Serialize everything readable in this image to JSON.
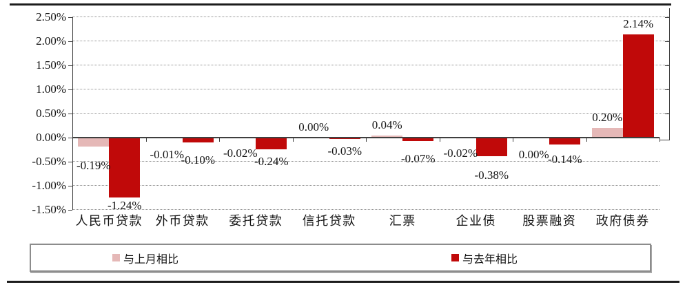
{
  "chart_data": {
    "type": "bar",
    "title": "",
    "categories": [
      "人民币贷款",
      "外币贷款",
      "委托贷款",
      "信托贷款",
      "汇票",
      "企业债",
      "股票融资",
      "政府债券"
    ],
    "series": [
      {
        "name": "与上月相比",
        "color": "#E5B8B7",
        "values": [
          -0.19,
          -0.01,
          -0.02,
          0.0,
          0.04,
          -0.02,
          0.0,
          0.2
        ],
        "labels": [
          "-0.19%",
          "-0.01%",
          "-0.02%",
          "0.00%",
          "0.04%",
          "-0.02%",
          "0.00%",
          "0.20%"
        ]
      },
      {
        "name": "与去年相比",
        "color": "#C00909",
        "values": [
          -1.24,
          -0.1,
          -0.24,
          -0.03,
          -0.07,
          -0.38,
          -0.14,
          2.14
        ],
        "labels": [
          "-1.24%",
          "-0.10%",
          "-0.24%",
          "-0.03%",
          "-0.07%",
          "-0.38%",
          "-0.14%",
          "2.14%"
        ]
      }
    ],
    "y_axis": {
      "min": -1.5,
      "max": 2.5,
      "step": 0.5,
      "tick_labels": [
        "2.50%",
        "2.00%",
        "1.50%",
        "1.00%",
        "0.50%",
        "0.00%",
        "-0.50%",
        "-1.00%",
        "-1.50%"
      ]
    },
    "value_suffix": "%",
    "grid": "horizontal-dotted",
    "legend_position": "bottom-boxed",
    "bar_colors": {
      "dark_red": "#C00909",
      "light_pink": "#E5B8B7"
    }
  }
}
